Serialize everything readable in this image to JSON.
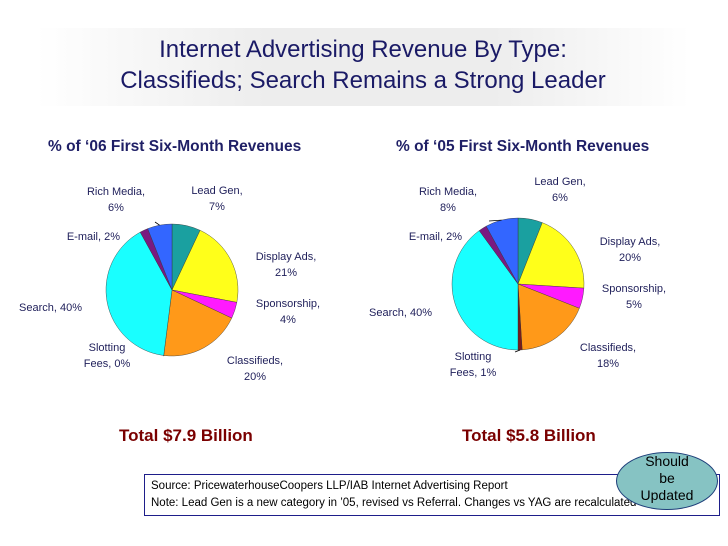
{
  "title": {
    "line1": "Internet Advertising Revenue By Type:",
    "line2": "Classifieds; Search Remains a Strong Leader"
  },
  "colors": {
    "lead_gen": "#1aa0a0",
    "display_ads": "#ffff1a",
    "sponsorship": "#ff1aff",
    "classifieds": "#ff9919",
    "slotting_fees": "#7a1a1a",
    "search": "#19ffff",
    "email": "#7a1a80",
    "rich_media": "#3366ff"
  },
  "chart_data": [
    {
      "type": "pie",
      "title": "% of ‘06 First Six-Month Revenues",
      "total": "Total $7.9 Billion",
      "slices": [
        {
          "name": "Lead Gen",
          "value": 7,
          "label": [
            "Lead Gen,",
            "7%"
          ]
        },
        {
          "name": "Display Ads",
          "value": 21,
          "label": [
            "Display Ads,",
            "21%"
          ]
        },
        {
          "name": "Sponsorship",
          "value": 4,
          "label": [
            "Sponsorship,",
            "4%"
          ]
        },
        {
          "name": "Classifieds",
          "value": 20,
          "label": [
            "Classifieds,",
            "20%"
          ]
        },
        {
          "name": "Slotting Fees",
          "value": 0,
          "label": [
            "Slotting",
            "Fees, 0%"
          ]
        },
        {
          "name": "Search",
          "value": 40,
          "label": [
            "Search, 40%"
          ]
        },
        {
          "name": "E-mail",
          "value": 2,
          "label": [
            "E-mail, 2%"
          ]
        },
        {
          "name": "Rich Media",
          "value": 6,
          "label": [
            "Rich Media,",
            "6%"
          ]
        }
      ]
    },
    {
      "type": "pie",
      "title": "% of ‘05 First Six-Month Revenues",
      "total": "Total $5.8 Billion",
      "slices": [
        {
          "name": "Lead Gen",
          "value": 6,
          "label": [
            "Lead Gen,",
            "6%"
          ]
        },
        {
          "name": "Display Ads",
          "value": 20,
          "label": [
            "Display Ads,",
            "20%"
          ]
        },
        {
          "name": "Sponsorship",
          "value": 5,
          "label": [
            "Sponsorship,",
            "5%"
          ]
        },
        {
          "name": "Classifieds",
          "value": 18,
          "label": [
            "Classifieds,",
            "18%"
          ]
        },
        {
          "name": "Slotting Fees",
          "value": 1,
          "label": [
            "Slotting",
            "Fees, 1%"
          ]
        },
        {
          "name": "Search",
          "value": 40,
          "label": [
            "Search, 40%"
          ]
        },
        {
          "name": "E-mail",
          "value": 2,
          "label": [
            "E-mail, 2%"
          ]
        },
        {
          "name": "Rich Media",
          "value": 8,
          "label": [
            "Rich Media,",
            "8%"
          ]
        }
      ]
    }
  ],
  "source": {
    "line1": "Source: PricewaterhouseCoopers LLP/IAB  Internet Advertising Report",
    "line2": "Note: Lead Gen is a new category in ’05, revised vs Referral.  Changes vs YAG are recalculated"
  },
  "bubble": [
    "Should",
    "be",
    "Updated"
  ]
}
